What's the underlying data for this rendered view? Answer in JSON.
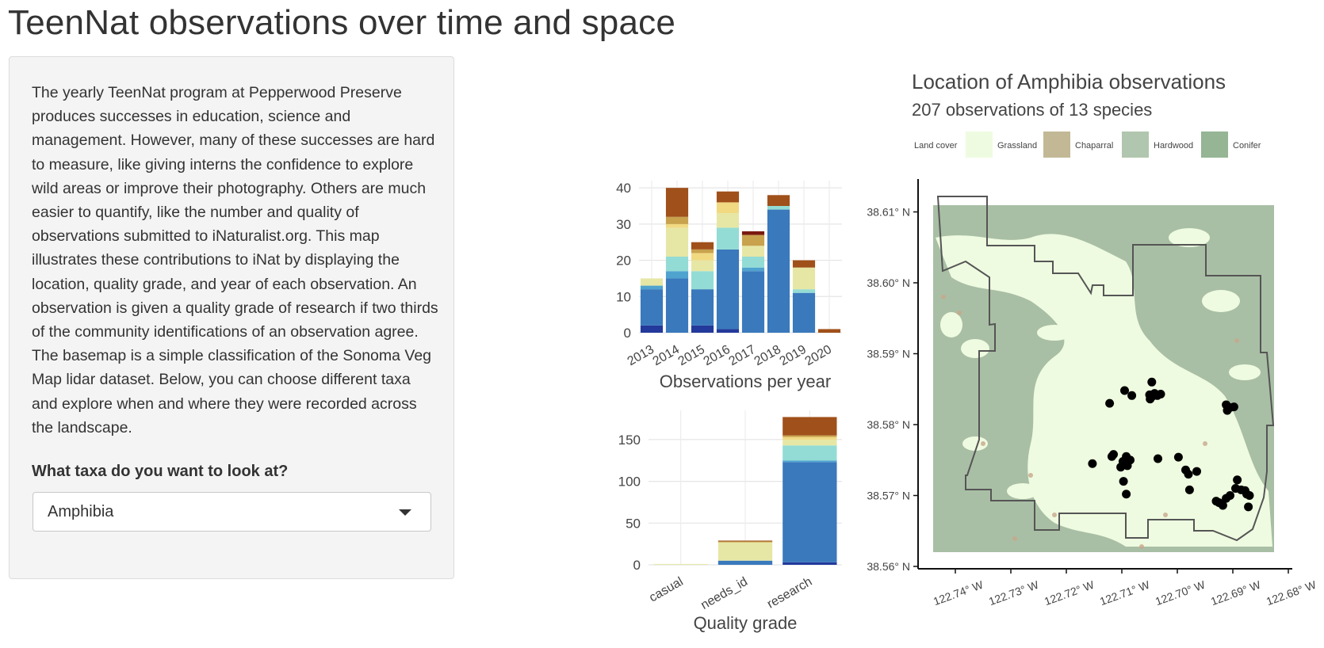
{
  "page": {
    "title": "TeenNat observations over time and space"
  },
  "sidebar": {
    "description": "The yearly TeenNat program at Pepperwood Preserve produces successes in education, science and management. However, many of these successes are hard to measure, like giving interns the confidence to explore wild areas or improve their photography. Others are much easier to quantify, like the number and quality of observations submitted to iNaturalist.org. This map illustrates these contributions to iNat by displaying the location, quality grade, and year of each observation. An observation is given a quality grade of research if two thirds of the community identifications of an observation agree. The basemap is a simple classification of the Sonoma Veg Map lidar dataset. Below, you can choose different taxa and explore when and where they were recorded across the landscape.",
    "select_label": "What taxa do you want to look at?",
    "select_value": "Amphibia",
    "caret_icon": "chevron-down-icon"
  },
  "chart_data": [
    {
      "type": "bar",
      "stacked": true,
      "title": "",
      "xlabel": "Observations per year",
      "ylabel": "",
      "categories": [
        "2013",
        "2014",
        "2015",
        "2016",
        "2017",
        "2018",
        "2019",
        "2020"
      ],
      "yticks": [
        0,
        10,
        20,
        30,
        40
      ],
      "ylim": [
        0,
        42
      ],
      "grid": true,
      "series": [
        {
          "color": "#23399b",
          "values": [
            2,
            0,
            2,
            1,
            0,
            0,
            0,
            0
          ]
        },
        {
          "color": "#3a79bc",
          "values": [
            10,
            15,
            10,
            22,
            17,
            34,
            11,
            0
          ]
        },
        {
          "color": "#4fa3cf",
          "values": [
            1,
            2,
            0,
            0,
            1,
            0,
            0,
            0
          ]
        },
        {
          "color": "#93dcd5",
          "values": [
            0,
            4,
            5,
            6,
            3,
            1,
            1,
            0
          ]
        },
        {
          "color": "#e6e7a5",
          "values": [
            2,
            8,
            3,
            4,
            3,
            0,
            6,
            0
          ]
        },
        {
          "color": "#f1d982",
          "values": [
            0,
            1,
            2,
            3,
            0,
            0,
            0,
            0
          ]
        },
        {
          "color": "#c8a24d",
          "values": [
            0,
            2,
            1,
            0,
            3,
            0,
            0,
            0
          ]
        },
        {
          "color": "#a0501a",
          "values": [
            0,
            8,
            2,
            3,
            0,
            3,
            2,
            1
          ]
        },
        {
          "color": "#7a1a10",
          "values": [
            0,
            0,
            0,
            0,
            1,
            0,
            0,
            0
          ]
        }
      ]
    },
    {
      "type": "bar",
      "stacked": true,
      "title": "",
      "xlabel": "Quality grade",
      "ylabel": "",
      "categories": [
        "casual",
        "needs_id",
        "research"
      ],
      "yticks": [
        0,
        50,
        100,
        150
      ],
      "ylim": [
        0,
        185
      ],
      "grid": true,
      "series": [
        {
          "color": "#23399b",
          "values": [
            0,
            0,
            3
          ]
        },
        {
          "color": "#3a79bc",
          "values": [
            0,
            5,
            120
          ]
        },
        {
          "color": "#4fa3cf",
          "values": [
            0,
            0,
            2
          ]
        },
        {
          "color": "#93dcd5",
          "values": [
            0,
            0,
            18
          ]
        },
        {
          "color": "#e6e7a5",
          "values": [
            1,
            22,
            7
          ]
        },
        {
          "color": "#f1d982",
          "values": [
            0,
            0,
            3
          ]
        },
        {
          "color": "#c8a24d",
          "values": [
            0,
            1,
            2
          ]
        },
        {
          "color": "#a0501a",
          "values": [
            0,
            1,
            22
          ]
        }
      ]
    }
  ],
  "map": {
    "title": "Location of Amphibia observations",
    "subtitle": "207 observations of 13 species",
    "legend": {
      "title": "Land cover",
      "items": [
        {
          "label": "Grassland",
          "color": "#eefbe0"
        },
        {
          "label": "Chaparral",
          "color": "#c2b896"
        },
        {
          "label": "Hardwood",
          "color": "#b1c6ae"
        },
        {
          "label": "Conifer",
          "color": "#95b594"
        }
      ]
    },
    "colors": {
      "hardwood_fill": "#a9bfa5",
      "grassland": "#eefbe0",
      "chaparral": "#c8a88a",
      "boundary": "#555555",
      "points": "#000000"
    },
    "lat_ticks": [
      "38.61° N",
      "38.60° N",
      "38.59° N",
      "38.58° N",
      "38.57° N",
      "38.56° N"
    ],
    "lon_ticks": [
      "122.74° W",
      "122.73° W",
      "122.72° W",
      "122.71° W",
      "122.70° W",
      "122.69° W",
      "122.68° W"
    ],
    "points": [
      {
        "lon": -122.7049,
        "lat": 38.5836
      },
      {
        "lon": -122.705,
        "lat": 38.5842
      },
      {
        "lon": -122.7045,
        "lat": 38.584
      },
      {
        "lon": -122.7041,
        "lat": 38.5844
      },
      {
        "lon": -122.7036,
        "lat": 38.5841
      },
      {
        "lon": -122.703,
        "lat": 38.5843
      },
      {
        "lon": -122.7046,
        "lat": 38.586
      },
      {
        "lon": -122.7095,
        "lat": 38.5848
      },
      {
        "lon": -122.7082,
        "lat": 38.5841
      },
      {
        "lon": -122.7122,
        "lat": 38.583
      },
      {
        "lon": -122.6912,
        "lat": 38.5828
      },
      {
        "lon": -122.6905,
        "lat": 38.5824
      },
      {
        "lon": -122.691,
        "lat": 38.582
      },
      {
        "lon": -122.6898,
        "lat": 38.5825
      },
      {
        "lon": -122.6985,
        "lat": 38.5736
      },
      {
        "lon": -122.6998,
        "lat": 38.5754
      },
      {
        "lon": -122.7035,
        "lat": 38.5752
      },
      {
        "lon": -122.698,
        "lat": 38.573
      },
      {
        "lon": -122.6965,
        "lat": 38.5734
      },
      {
        "lon": -122.6978,
        "lat": 38.5708
      },
      {
        "lon": -122.7098,
        "lat": 38.5748
      },
      {
        "lon": -122.7092,
        "lat": 38.5755
      },
      {
        "lon": -122.709,
        "lat": 38.5742
      },
      {
        "lon": -122.7102,
        "lat": 38.574
      },
      {
        "lon": -122.7085,
        "lat": 38.575
      },
      {
        "lon": -122.7118,
        "lat": 38.5755
      },
      {
        "lon": -122.7115,
        "lat": 38.5758
      },
      {
        "lon": -122.7153,
        "lat": 38.5745
      },
      {
        "lon": -122.7097,
        "lat": 38.572
      },
      {
        "lon": -122.7092,
        "lat": 38.5702
      },
      {
        "lon": -122.6892,
        "lat": 38.5722
      },
      {
        "lon": -122.6895,
        "lat": 38.571
      },
      {
        "lon": -122.6885,
        "lat": 38.5708
      },
      {
        "lon": -122.6878,
        "lat": 38.5707
      },
      {
        "lon": -122.6875,
        "lat": 38.5702
      },
      {
        "lon": -122.687,
        "lat": 38.57
      },
      {
        "lon": -122.6905,
        "lat": 38.57
      },
      {
        "lon": -122.6912,
        "lat": 38.5696
      },
      {
        "lon": -122.6925,
        "lat": 38.569
      },
      {
        "lon": -122.693,
        "lat": 38.5692
      },
      {
        "lon": -122.6918,
        "lat": 38.5686
      },
      {
        "lon": -122.6872,
        "lat": 38.5684
      }
    ]
  }
}
